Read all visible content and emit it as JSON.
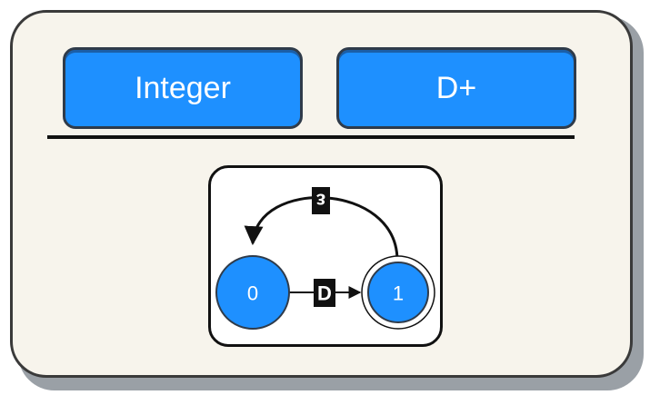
{
  "header": {
    "left_label": "Integer",
    "right_label": "D+"
  },
  "automaton": {
    "states": [
      {
        "id": "0",
        "label": "0",
        "accepting": false,
        "initial": true
      },
      {
        "id": "1",
        "label": "1",
        "accepting": true,
        "initial": false
      }
    ],
    "transitions": [
      {
        "from": "0",
        "to": "1",
        "label": "D"
      },
      {
        "from": "1",
        "to": "0",
        "label": "ε",
        "label_rotated": true
      }
    ]
  },
  "colors": {
    "button_fill": "#1e90ff",
    "state_fill": "#1e90ff",
    "card_bg": "#f7f4ec"
  }
}
